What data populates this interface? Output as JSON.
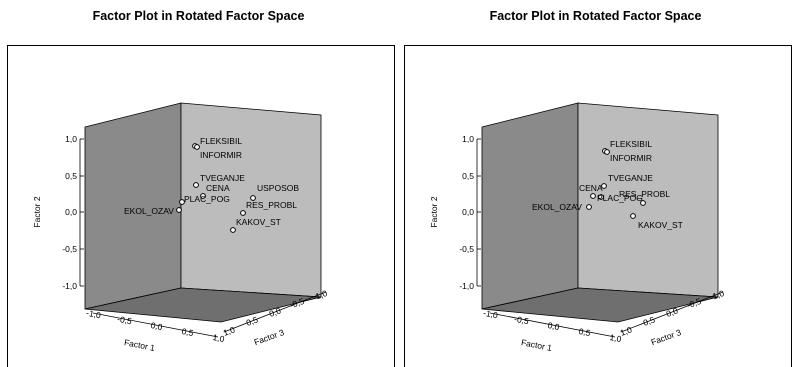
{
  "chart_data": [
    {
      "type": "scatter",
      "title": "Factor Plot in Rotated Factor Space",
      "axes": {
        "factor_1": {
          "label": "Factor 1",
          "ticks": [
            "-1,0",
            "-0,5",
            "0,0",
            "0,5",
            "1,0"
          ],
          "range": [
            -1,
            1
          ]
        },
        "factor_2": {
          "label": "Factor 2",
          "ticks": [
            "1,0",
            "0,5",
            "0,0",
            "-0,5",
            "-1,0"
          ],
          "range": [
            -1,
            1
          ]
        },
        "factor_3": {
          "label": "Factor 3",
          "ticks": [
            "1,0",
            "0,5",
            "0,0",
            "-0,5",
            "-1,0"
          ],
          "range": [
            -1,
            1
          ]
        }
      },
      "points": [
        {
          "label": "FLEKSIBIL",
          "factor_2": 0.88
        },
        {
          "label": "INFORMIR",
          "factor_2": 0.87
        },
        {
          "label": "TVEGANJE",
          "factor_2": 0.36
        },
        {
          "label": "CENA",
          "factor_2": 0.24
        },
        {
          "label": "USPOSOB",
          "factor_2": 0.2
        },
        {
          "label": "PLAC_POG",
          "factor_2": 0.12
        },
        {
          "label": "RES_PROBL",
          "factor_2": 0.0
        },
        {
          "label": "EKOL_OZAV",
          "factor_2": 0.02
        },
        {
          "label": "KAKOV_ST",
          "factor_2": -0.24
        }
      ]
    },
    {
      "type": "scatter",
      "title": "Factor Plot in Rotated Factor Space",
      "axes": {
        "factor_1": {
          "label": "Factor 1",
          "ticks": [
            "-1,0",
            "-0,5",
            "0,0",
            "0,5",
            "1,0"
          ],
          "range": [
            -1,
            1
          ]
        },
        "factor_2": {
          "label": "Factor 2",
          "ticks": [
            "1,0",
            "0,5",
            "0,0",
            "-0,5",
            "-1,0"
          ],
          "range": [
            -1,
            1
          ]
        },
        "factor_3": {
          "label": "Factor 3",
          "ticks": [
            "1,0",
            "0,5",
            "0,0",
            "-0,5",
            "-1,0"
          ],
          "range": [
            -1,
            1
          ]
        }
      },
      "points": [
        {
          "label": "FLEKSIBIL",
          "factor_2": 0.82
        },
        {
          "label": "INFORMIR",
          "factor_2": 0.81
        },
        {
          "label": "TVEGANJE",
          "factor_2": 0.34
        },
        {
          "label": "CENA",
          "factor_2": 0.2
        },
        {
          "label": "PLAC_POG",
          "factor_2": 0.14
        },
        {
          "label": "RES_PROBL",
          "factor_2": 0.24
        },
        {
          "label": "EKOL_OZAV",
          "factor_2": 0.07
        },
        {
          "label": "KAKOV_ST",
          "factor_2": -0.05
        }
      ]
    }
  ]
}
